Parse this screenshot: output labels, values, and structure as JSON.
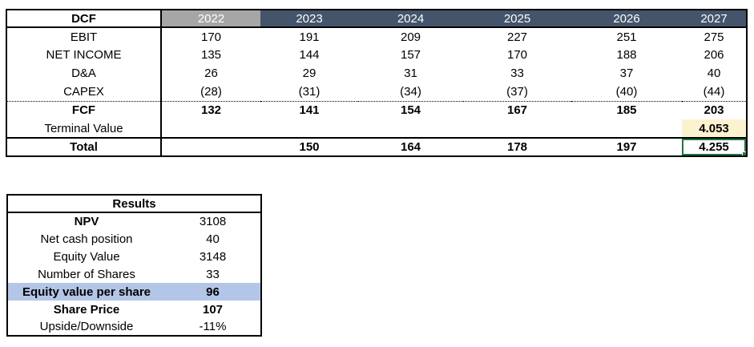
{
  "dcf_table": {
    "title": "DCF",
    "years": [
      "2022",
      "2023",
      "2024",
      "2025",
      "2026",
      "2027"
    ],
    "rows": [
      {
        "label": "EBIT",
        "values": [
          "170",
          "191",
          "209",
          "227",
          "251",
          "275"
        ]
      },
      {
        "label": "NET INCOME",
        "values": [
          "135",
          "144",
          "157",
          "170",
          "188",
          "206"
        ]
      },
      {
        "label": "D&A",
        "values": [
          "26",
          "29",
          "31",
          "33",
          "37",
          "40"
        ]
      },
      {
        "label": "CAPEX",
        "values": [
          "(28)",
          "(31)",
          "(34)",
          "(37)",
          "(40)",
          "(44)"
        ]
      },
      {
        "label": "FCF",
        "values": [
          "132",
          "141",
          "154",
          "167",
          "185",
          "203"
        ]
      },
      {
        "label": "Terminal Value",
        "values": [
          "",
          "",
          "",
          "",
          "",
          "4.053"
        ]
      },
      {
        "label": "Total",
        "values": [
          "",
          "150",
          "164",
          "178",
          "197",
          "4.255"
        ]
      }
    ],
    "selected_cell_value": "4.255"
  },
  "results_table": {
    "title": "Results",
    "rows": [
      {
        "label": "NPV",
        "value": "3108"
      },
      {
        "label": "Net cash position",
        "value": "40"
      },
      {
        "label": "Equity Value",
        "value": "3148"
      },
      {
        "label": "Number of Shares",
        "value": "33"
      },
      {
        "label": "Equity value per share",
        "value": "96"
      },
      {
        "label": "Share Price",
        "value": "107"
      },
      {
        "label": "Upside/Downside",
        "value": "-11%"
      }
    ]
  },
  "colors": {
    "header_gray": "#A6A6A6",
    "header_dark": "#44546A",
    "highlight_yellow": "#FDF2CF",
    "highlight_blue": "#B4C6E7",
    "selection_green": "#217346"
  }
}
